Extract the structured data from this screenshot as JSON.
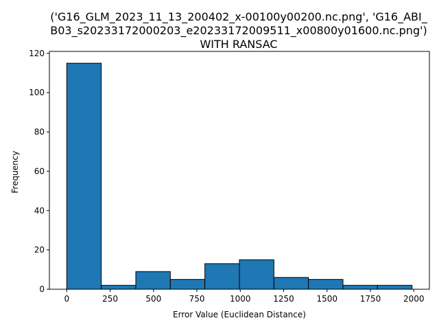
{
  "chart_data": {
    "type": "bar",
    "title_lines": [
      "('G16_GLM_2023_11_13_200402_x-00100y00200.nc.png', 'G16_ABI_",
      "B03_s20233172000203_e20233172009511_x00800y01600.nc.png')",
      "WITH RANSAC"
    ],
    "xlabel": "Error Value (Euclidean Distance)",
    "ylabel": "Frequency",
    "bins": [
      {
        "x0": 0,
        "x1": 199,
        "count": 115
      },
      {
        "x0": 199,
        "x1": 398,
        "count": 2
      },
      {
        "x0": 398,
        "x1": 597,
        "count": 9
      },
      {
        "x0": 597,
        "x1": 796,
        "count": 5
      },
      {
        "x0": 796,
        "x1": 995,
        "count": 13
      },
      {
        "x0": 995,
        "x1": 1194,
        "count": 15
      },
      {
        "x0": 1194,
        "x1": 1393,
        "count": 6
      },
      {
        "x0": 1393,
        "x1": 1592,
        "count": 5
      },
      {
        "x0": 1592,
        "x1": 1791,
        "count": 2
      },
      {
        "x0": 1791,
        "x1": 1990,
        "count": 2
      }
    ],
    "xlim": [
      -100,
      2090
    ],
    "ylim": [
      0,
      121
    ],
    "xticks": [
      0,
      250,
      500,
      750,
      1000,
      1250,
      1500,
      1750,
      2000
    ],
    "yticks": [
      0,
      20,
      40,
      60,
      80,
      100,
      120
    ],
    "bar_color": "#1f77b4",
    "edge_color": "#000000",
    "grid": false,
    "legend": "none"
  }
}
